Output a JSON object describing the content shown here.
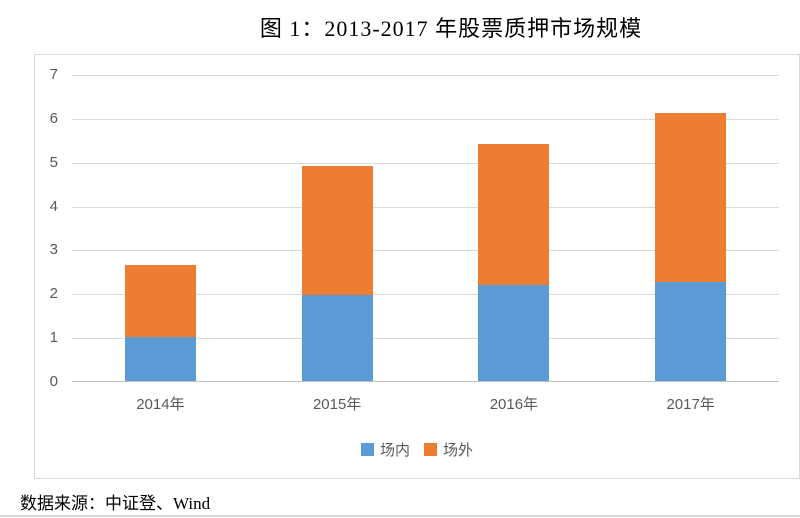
{
  "page": {
    "source_note": "数据来源：中证登、Wind"
  },
  "chart_data": {
    "type": "bar",
    "stacked": true,
    "title": "图 1：2013-2017 年股票质押市场规模",
    "xlabel": "",
    "ylabel": "",
    "categories": [
      "2014年",
      "2015年",
      "2016年",
      "2017年"
    ],
    "series": [
      {
        "name": "场内",
        "color": "#5B9BD5",
        "values": [
          1.0,
          1.95,
          2.2,
          2.25
        ]
      },
      {
        "name": "场外",
        "color": "#ED7D31",
        "values": [
          1.65,
          2.95,
          3.2,
          3.85
        ]
      }
    ],
    "totals": [
      2.65,
      4.9,
      5.4,
      6.1
    ],
    "ylim": [
      0,
      7
    ],
    "yticks": [
      0,
      1,
      2,
      3,
      4,
      5,
      6,
      7
    ],
    "grid": true,
    "legend_position": "bottom",
    "colors": {
      "gridline": "#D9D9D9",
      "axis_line": "#BFBFBF",
      "tick_label": "#595959",
      "frame_border": "#D9D9D9"
    }
  }
}
